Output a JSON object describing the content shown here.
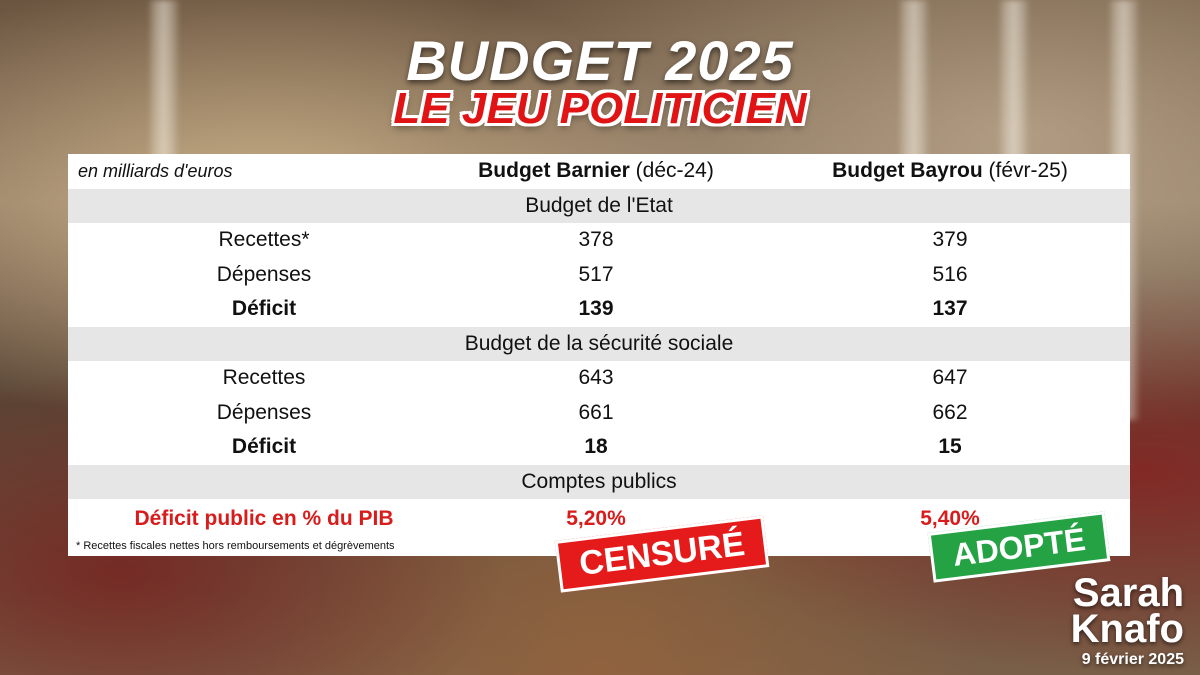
{
  "title": "BUDGET 2025",
  "subtitle": "LE JEU POLITICIEN",
  "table": {
    "units": "en milliards d'euros",
    "col1_name": "Budget Barnier",
    "col1_date": "(déc-24)",
    "col2_name": "Budget Bayrou",
    "col2_date": "(févr-25)",
    "sections": [
      {
        "title": "Budget de l'Etat",
        "rows": [
          {
            "label": "Recettes*",
            "barnier": "378",
            "bayrou": "379"
          },
          {
            "label": "Dépenses",
            "barnier": "517",
            "bayrou": "516"
          },
          {
            "label": "Déficit",
            "barnier": "139",
            "bayrou": "137"
          }
        ]
      },
      {
        "title": "Budget de la sécurité sociale",
        "rows": [
          {
            "label": "Recettes",
            "barnier": "643",
            "bayrou": "647"
          },
          {
            "label": "Dépenses",
            "barnier": "661",
            "bayrou": "662"
          },
          {
            "label": "Déficit",
            "barnier": "18",
            "bayrou": "15"
          }
        ]
      },
      {
        "title": "Comptes publics",
        "rows": [
          {
            "label": "Déficit public en % du PIB",
            "barnier": "5,20%",
            "bayrou": "5,40%"
          }
        ]
      }
    ],
    "footnote": "* Recettes fiscales nettes hors remboursements et dégrèvements"
  },
  "stamps": {
    "barnier": "CENSURÉ",
    "bayrou": "ADOPTÉ"
  },
  "brand": {
    "line1": "Sarah",
    "line2": "Knafo",
    "date": "9 février 2025"
  },
  "colors": {
    "title_red": "#e01414",
    "censure_red": "#e51b1b",
    "adopte_green": "#25a244",
    "row_shade": "#e6e6e6"
  }
}
